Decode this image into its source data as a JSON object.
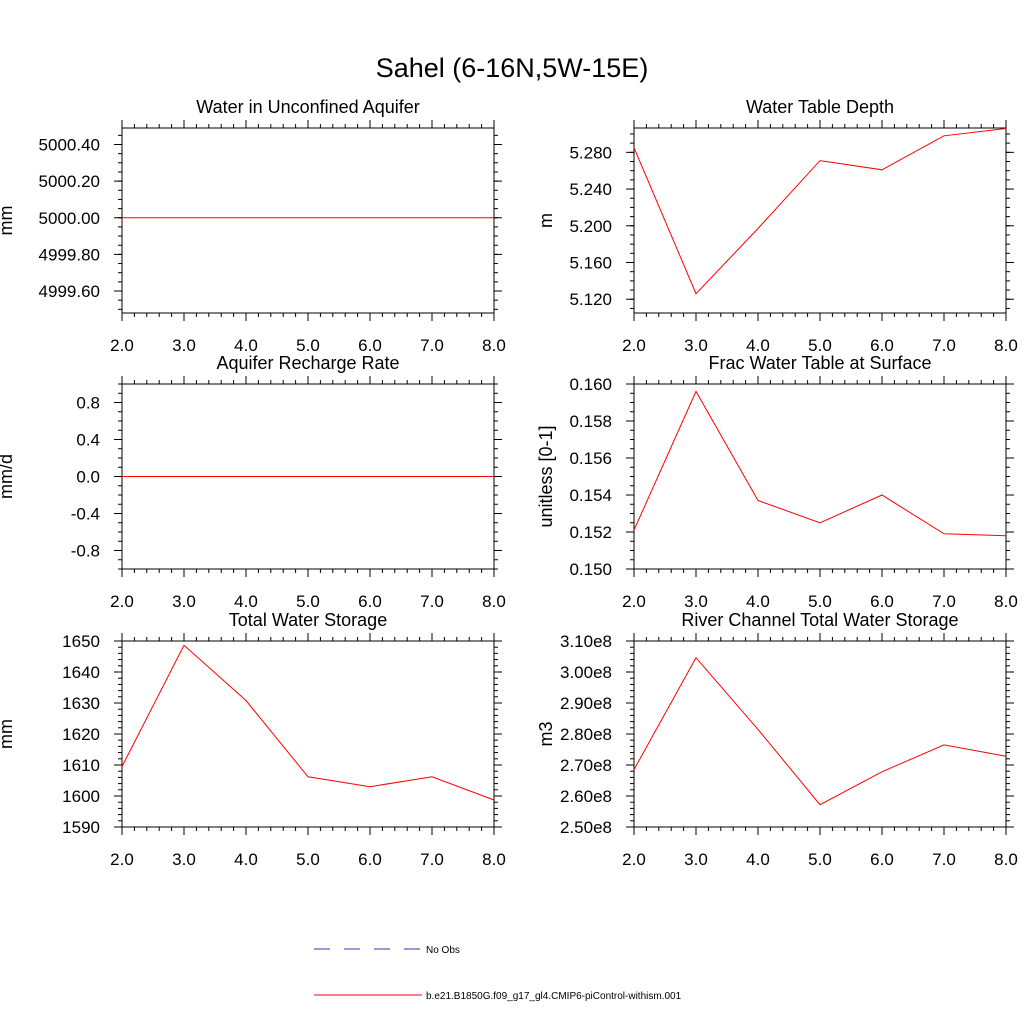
{
  "figure": {
    "title": "Sahel (6-16N,5W-15E)",
    "line_color": "#ff0000",
    "obs_color": "#3333aa"
  },
  "legend": {
    "items": [
      {
        "label": "No Obs",
        "style": "dashed",
        "color": "#3333aa"
      },
      {
        "label": "b.e21.B1850G.f09_g17_gl4.CMIP6-piControl-withism.001",
        "style": "solid",
        "color": "#ff0000"
      }
    ]
  },
  "chart_data": [
    {
      "type": "line",
      "title": "Water in Unconfined Aquifer",
      "xlabel": "",
      "ylabel": "mm",
      "xlim": [
        2.0,
        8.0
      ],
      "ylim": [
        4999.48,
        5000.49
      ],
      "xticks": [
        2,
        3,
        4,
        5,
        6,
        7,
        8
      ],
      "xtick_labels": [
        "2.0",
        "3.0",
        "4.0",
        "5.0",
        "6.0",
        "7.0",
        "8.0"
      ],
      "yticks": [
        4999.6,
        4999.8,
        5000.0,
        5000.2,
        5000.4
      ],
      "ytick_labels": [
        "4999.60",
        "4999.80",
        "5000.00",
        "5000.20",
        "5000.40"
      ],
      "yminor": 0.05,
      "series": [
        {
          "name": "b.e21.B1850G.f09_g17_gl4.CMIP6-piControl-withism.001",
          "x": [
            2,
            3,
            4,
            5,
            6,
            7,
            8
          ],
          "y": [
            5000.0,
            5000.0,
            5000.0,
            5000.0,
            5000.0,
            5000.0,
            5000.0
          ]
        }
      ]
    },
    {
      "type": "line",
      "title": "Water Table Depth",
      "xlabel": "",
      "ylabel": "m",
      "xlim": [
        2.0,
        8.0
      ],
      "ylim": [
        5.105,
        5.3065
      ],
      "xticks": [
        2,
        3,
        4,
        5,
        6,
        7,
        8
      ],
      "xtick_labels": [
        "2.0",
        "3.0",
        "4.0",
        "5.0",
        "6.0",
        "7.0",
        "8.0"
      ],
      "yticks": [
        5.12,
        5.16,
        5.2,
        5.24,
        5.28
      ],
      "ytick_labels": [
        "5.120",
        "5.160",
        "5.200",
        "5.240",
        "5.280"
      ],
      "yminor": 0.01,
      "series": [
        {
          "name": "b.e21.B1850G.f09_g17_gl4.CMIP6-piControl-withism.001",
          "x": [
            2,
            3,
            4,
            5,
            6,
            7,
            8
          ],
          "y": [
            5.285,
            5.126,
            5.197,
            5.271,
            5.261,
            5.298,
            5.306
          ]
        }
      ]
    },
    {
      "type": "line",
      "title": "Aquifer Recharge Rate",
      "xlabel": "",
      "ylabel": "mm/d",
      "xlim": [
        2.0,
        8.0
      ],
      "ylim": [
        -1.0,
        1.0
      ],
      "xticks": [
        2,
        3,
        4,
        5,
        6,
        7,
        8
      ],
      "xtick_labels": [
        "2.0",
        "3.0",
        "4.0",
        "5.0",
        "6.0",
        "7.0",
        "8.0"
      ],
      "yticks": [
        -0.8,
        -0.4,
        0.0,
        0.4,
        0.8
      ],
      "ytick_labels": [
        "-0.8",
        "-0.4",
        "0.0",
        "0.4",
        "0.8"
      ],
      "yminor": 0.1,
      "series": [
        {
          "name": "b.e21.B1850G.f09_g17_gl4.CMIP6-piControl-withism.001",
          "x": [
            2,
            3,
            4,
            5,
            6,
            7,
            8
          ],
          "y": [
            0,
            0,
            0,
            0,
            0,
            0,
            0
          ]
        }
      ]
    },
    {
      "type": "line",
      "title": "Frac Water Table at Surface",
      "xlabel": "",
      "ylabel": "unitless [0-1]",
      "xlim": [
        2.0,
        8.0
      ],
      "ylim": [
        0.15,
        0.16
      ],
      "xticks": [
        2,
        3,
        4,
        5,
        6,
        7,
        8
      ],
      "xtick_labels": [
        "2.0",
        "3.0",
        "4.0",
        "5.0",
        "6.0",
        "7.0",
        "8.0"
      ],
      "yticks": [
        0.15,
        0.152,
        0.154,
        0.156,
        0.158,
        0.16
      ],
      "ytick_labels": [
        "0.150",
        "0.152",
        "0.154",
        "0.156",
        "0.158",
        "0.160"
      ],
      "yminor": 0.0005,
      "series": [
        {
          "name": "b.e21.B1850G.f09_g17_gl4.CMIP6-piControl-withism.001",
          "x": [
            2,
            3,
            4,
            5,
            6,
            7,
            8
          ],
          "y": [
            0.1521,
            0.1596,
            0.1537,
            0.1525,
            0.154,
            0.1519,
            0.1518
          ]
        }
      ]
    },
    {
      "type": "line",
      "title": "Total Water Storage",
      "xlabel": "",
      "ylabel": "mm",
      "xlim": [
        2.0,
        8.0
      ],
      "ylim": [
        1590,
        1650
      ],
      "xticks": [
        2,
        3,
        4,
        5,
        6,
        7,
        8
      ],
      "xtick_labels": [
        "2.0",
        "3.0",
        "4.0",
        "5.0",
        "6.0",
        "7.0",
        "8.0"
      ],
      "yticks": [
        1590,
        1600,
        1610,
        1620,
        1630,
        1640,
        1650
      ],
      "ytick_labels": [
        "1590",
        "1600",
        "1610",
        "1620",
        "1630",
        "1640",
        "1650"
      ],
      "yminor": 2,
      "series": [
        {
          "name": "b.e21.B1850G.f09_g17_gl4.CMIP6-piControl-withism.001",
          "x": [
            2,
            3,
            4,
            5,
            6,
            7,
            8
          ],
          "y": [
            1609.5,
            1648.6,
            1630.8,
            1606.2,
            1603.0,
            1606.2,
            1598.7
          ]
        }
      ]
    },
    {
      "type": "line",
      "title": "River Channel Total Water Storage",
      "xlabel": "",
      "ylabel": "m3",
      "xlim": [
        2.0,
        8.0
      ],
      "ylim": [
        250000000,
        310000000
      ],
      "xticks": [
        2,
        3,
        4,
        5,
        6,
        7,
        8
      ],
      "xtick_labels": [
        "2.0",
        "3.0",
        "4.0",
        "5.0",
        "6.0",
        "7.0",
        "8.0"
      ],
      "yticks": [
        250000000,
        260000000,
        270000000,
        280000000,
        290000000,
        300000000,
        310000000
      ],
      "ytick_labels": [
        "2.50e8",
        "2.60e8",
        "2.70e8",
        "2.80e8",
        "2.90e8",
        "3.00e8",
        "3.10e8"
      ],
      "yminor": 2000000,
      "series": [
        {
          "name": "b.e21.B1850G.f09_g17_gl4.CMIP6-piControl-withism.001",
          "x": [
            2,
            3,
            4,
            5,
            6,
            7,
            8
          ],
          "y": [
            268500000,
            304600000,
            281500000,
            257200000,
            267800000,
            276500000,
            272800000
          ]
        }
      ]
    }
  ]
}
